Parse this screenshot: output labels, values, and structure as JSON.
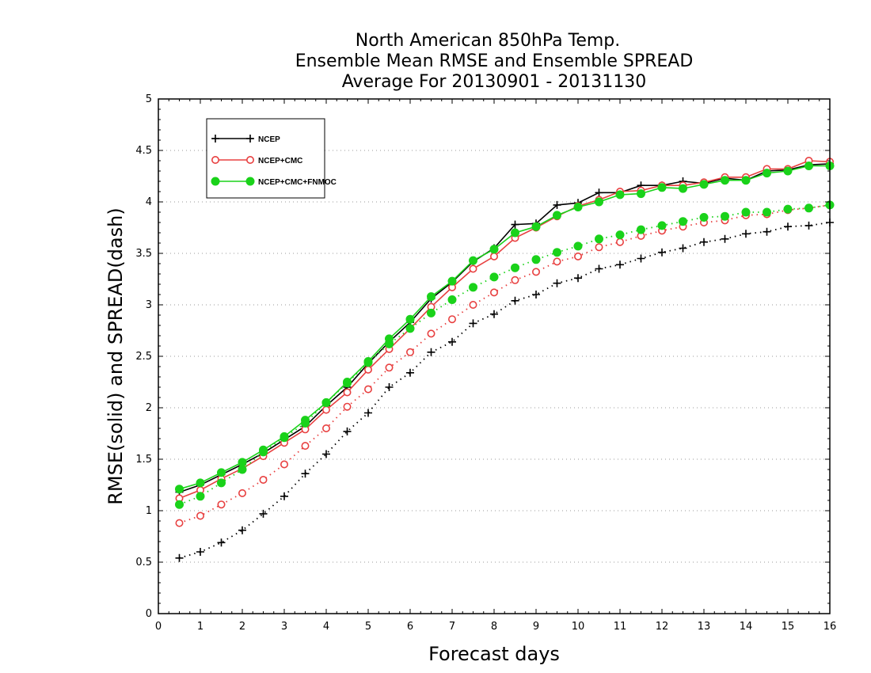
{
  "chart_data": {
    "type": "line",
    "title": [
      "North American 850hPa Temp.",
      "Ensemble Mean RMSE and Ensemble SPREAD",
      "Average For 20130901 - 20131130"
    ],
    "xlabel": "Forecast days",
    "ylabel": "RMSE(solid) and SPREAD(dash)",
    "xlim": [
      0,
      16
    ],
    "ylim": [
      0,
      5
    ],
    "xticks": [
      "0",
      "1",
      "2",
      "3",
      "4",
      "5",
      "6",
      "7",
      "8",
      "9",
      "10",
      "11",
      "12",
      "13",
      "14",
      "15",
      "16"
    ],
    "yticks": [
      "0",
      "0.5",
      "1",
      "1.5",
      "2",
      "2.5",
      "3",
      "3.5",
      "4",
      "4.5",
      "5"
    ],
    "grid": true,
    "legend_position": "top-left",
    "x": [
      0.5,
      1,
      1.5,
      2,
      2.5,
      3,
      3.5,
      4,
      4.5,
      5,
      5.5,
      6,
      6.5,
      7,
      7.5,
      8,
      8.5,
      9,
      9.5,
      10,
      10.5,
      11,
      11.5,
      12,
      12.5,
      13,
      13.5,
      14,
      14.5,
      15,
      15.5,
      16
    ],
    "series": [
      {
        "name": "NCEP",
        "color": "#000000",
        "marker": "plus",
        "rmse": [
          1.18,
          1.25,
          1.35,
          1.45,
          1.56,
          1.69,
          1.82,
          2.02,
          2.2,
          2.43,
          2.64,
          2.83,
          3.06,
          3.22,
          3.42,
          3.55,
          3.78,
          3.79,
          3.97,
          3.99,
          4.09,
          4.09,
          4.16,
          4.16,
          4.2,
          4.18,
          4.23,
          4.21,
          4.3,
          4.31,
          4.36,
          4.37
        ],
        "spread": [
          0.54,
          0.6,
          0.69,
          0.81,
          0.97,
          1.14,
          1.36,
          1.55,
          1.77,
          1.95,
          2.2,
          2.34,
          2.54,
          2.64,
          2.82,
          2.91,
          3.04,
          3.1,
          3.21,
          3.26,
          3.35,
          3.39,
          3.45,
          3.51,
          3.55,
          3.61,
          3.64,
          3.69,
          3.71,
          3.76,
          3.77,
          3.8
        ]
      },
      {
        "name": "NCEP+CMC",
        "color": "#e84040",
        "marker": "open-circle",
        "rmse": [
          1.12,
          1.2,
          1.31,
          1.41,
          1.53,
          1.66,
          1.79,
          1.98,
          2.15,
          2.37,
          2.57,
          2.77,
          2.98,
          3.17,
          3.35,
          3.47,
          3.65,
          3.75,
          3.86,
          3.96,
          4.02,
          4.1,
          4.11,
          4.16,
          4.16,
          4.19,
          4.24,
          4.24,
          4.32,
          4.32,
          4.4,
          4.39
        ],
        "spread": [
          0.88,
          0.95,
          1.06,
          1.17,
          1.3,
          1.45,
          1.63,
          1.8,
          2.01,
          2.18,
          2.39,
          2.54,
          2.72,
          2.86,
          3.0,
          3.12,
          3.24,
          3.32,
          3.42,
          3.47,
          3.56,
          3.61,
          3.67,
          3.72,
          3.76,
          3.8,
          3.82,
          3.87,
          3.88,
          3.92,
          3.94,
          3.97
        ]
      },
      {
        "name": "NCEP+CMC+FNMOC",
        "color": "#1ad21a",
        "marker": "filled-circle",
        "rmse": [
          1.21,
          1.27,
          1.37,
          1.47,
          1.59,
          1.72,
          1.88,
          2.05,
          2.25,
          2.45,
          2.67,
          2.86,
          3.08,
          3.23,
          3.43,
          3.54,
          3.7,
          3.76,
          3.87,
          3.95,
          4.0,
          4.07,
          4.08,
          4.14,
          4.13,
          4.17,
          4.21,
          4.21,
          4.28,
          4.3,
          4.35,
          4.35
        ],
        "spread": [
          1.06,
          1.14,
          1.27,
          1.4,
          1.57,
          1.71,
          1.85,
          2.05,
          2.24,
          2.44,
          2.62,
          2.77,
          2.92,
          3.05,
          3.17,
          3.27,
          3.36,
          3.44,
          3.51,
          3.57,
          3.64,
          3.68,
          3.73,
          3.77,
          3.81,
          3.85,
          3.86,
          3.9,
          3.9,
          3.93,
          3.94,
          3.97
        ]
      }
    ]
  }
}
